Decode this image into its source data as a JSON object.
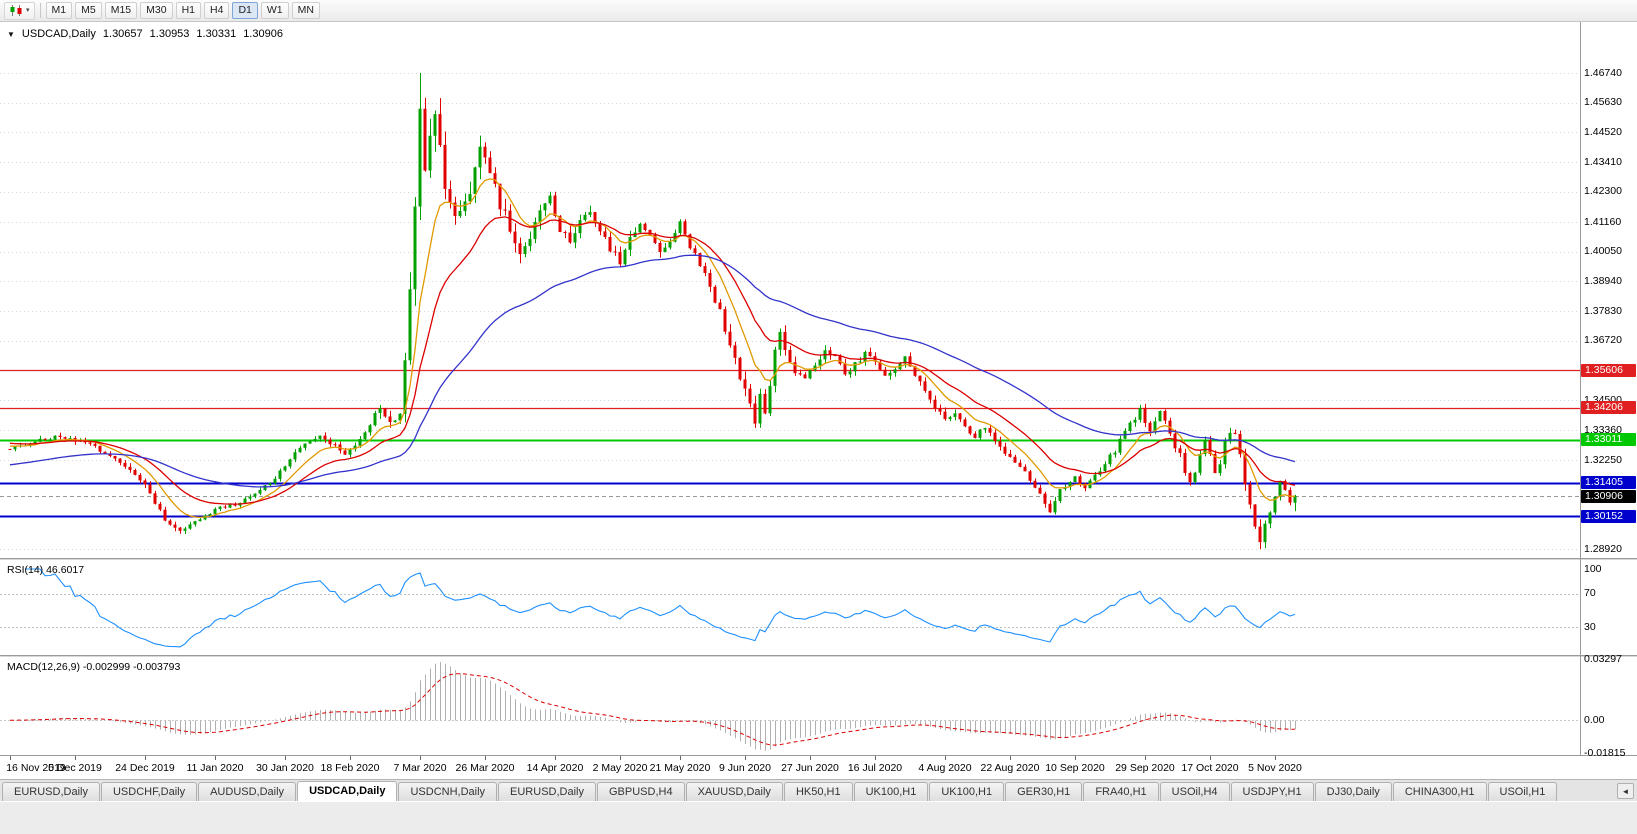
{
  "toolbar": {
    "chart_type_icon": "candlestick-chart-icon",
    "dropdown_caret": "▾",
    "timeframes": [
      "M1",
      "M5",
      "M15",
      "M30",
      "H1",
      "H4",
      "D1",
      "W1",
      "MN"
    ],
    "active_timeframe": "D1"
  },
  "chart": {
    "collapse_arrow": "▼",
    "symbol_period": "USDCAD,Daily",
    "ohlc": {
      "open": "1.30657",
      "high": "1.30953",
      "low": "1.30331",
      "close": "1.30906"
    }
  },
  "indicators": {
    "rsi_label": "RSI(14) 46.6017",
    "macd_label": "MACD(12,26,9) -0.002999 -0.003793"
  },
  "colors": {
    "candle_up": "#00A000",
    "candle_down": "#E00000",
    "hline_red": "#E02020",
    "hline_green": "#00C800",
    "hline_blue": "#0000CC",
    "current_price_badge": "#000000",
    "rsi_line": "#1E90FF",
    "macd_hist": "#B0B0B0",
    "macd_sign": "#DD0000",
    "grid": "#D4D4D4"
  },
  "tabs": {
    "active_index": 3,
    "scroll_left_arrow": "◄",
    "items": [
      "EURUSD,Daily",
      "USDCHF,Daily",
      "AUDUSD,Daily",
      "USDCAD,Daily",
      "USDCNH,Daily",
      "EURUSD,Daily",
      "GBPUSD,H4",
      "XAUUSD,Daily",
      "HK50,H1",
      "UK100,H1",
      "UK100,H1",
      "GER30,H1",
      "FRA40,H1",
      "USOil,H4",
      "USDJPY,H1",
      "DJ30,Daily",
      "CHINA300,H1",
      "USOil,H1"
    ]
  },
  "chart_data": {
    "type": "candlestick",
    "symbol": "USDCAD",
    "timeframe": "Daily",
    "n_candles": 258,
    "y_axis": {
      "min": 1.28583,
      "max": 1.4865
    },
    "y_axis_labels": [
      {
        "text": "1.46740",
        "price": 1.4674,
        "type": "grid"
      },
      {
        "text": "1.45630",
        "price": 1.4563,
        "type": "grid"
      },
      {
        "text": "1.44520",
        "price": 1.4452,
        "type": "grid"
      },
      {
        "text": "1.43410",
        "price": 1.4341,
        "type": "grid"
      },
      {
        "text": "1.42300",
        "price": 1.423,
        "type": "grid"
      },
      {
        "text": "1.41160",
        "price": 1.4116,
        "type": "grid"
      },
      {
        "text": "1.40050",
        "price": 1.4005,
        "type": "grid"
      },
      {
        "text": "1.38940",
        "price": 1.3894,
        "type": "grid"
      },
      {
        "text": "1.37830",
        "price": 1.3783,
        "type": "grid"
      },
      {
        "text": "1.36720",
        "price": 1.3672,
        "type": "grid"
      },
      {
        "text": "1.35606",
        "price": 1.35606,
        "type": "red"
      },
      {
        "text": "1.34500",
        "price": 1.345,
        "type": "grid"
      },
      {
        "text": "1.34206",
        "price": 1.34206,
        "type": "red"
      },
      {
        "text": "1.33360",
        "price": 1.3336,
        "type": "grid"
      },
      {
        "text": "1.33011",
        "price": 1.33011,
        "type": "green"
      },
      {
        "text": "1.32250",
        "price": 1.3225,
        "type": "grid"
      },
      {
        "text": "1.31405",
        "price": 1.31405,
        "type": "blue"
      },
      {
        "text": "1.30906",
        "price": 1.30906,
        "type": "current"
      },
      {
        "text": "1.30152",
        "price": 1.30152,
        "type": "blue"
      },
      {
        "text": "1.28920",
        "price": 1.2892,
        "type": "grid"
      }
    ],
    "horizontal_lines": [
      {
        "price": 1.35606,
        "color": "#E02020",
        "width": 1.2
      },
      {
        "price": 1.34206,
        "color": "#E02020",
        "width": 1.2
      },
      {
        "price": 1.33011,
        "color": "#00C800",
        "width": 2
      },
      {
        "price": 1.31405,
        "color": "#0000CC",
        "width": 2
      },
      {
        "price": 1.30152,
        "color": "#0000CC",
        "width": 2
      }
    ],
    "current_price": {
      "price": 1.30906,
      "text": "1.30906"
    },
    "pinned_last_candle": {
      "o": 1.30657,
      "h": 1.30953,
      "l": 1.30331,
      "c": 1.30906
    },
    "pinned_high": {
      "index": 82,
      "price": 1.4674
    },
    "pinned_low": {
      "index": 250,
      "price": 1.2892
    },
    "price_anchors": [
      [
        0,
        1.3268
      ],
      [
        4,
        1.3292
      ],
      [
        9,
        1.3308
      ],
      [
        13,
        1.3298
      ],
      [
        17,
        1.3272
      ],
      [
        21,
        1.3228
      ],
      [
        25,
        1.3165
      ],
      [
        28,
        1.3108
      ],
      [
        31,
        1.2992
      ],
      [
        34,
        1.2958
      ],
      [
        37,
        1.2988
      ],
      [
        41,
        1.3042
      ],
      [
        45,
        1.3062
      ],
      [
        49,
        1.3092
      ],
      [
        53,
        1.3158
      ],
      [
        56,
        1.3235
      ],
      [
        59,
        1.3292
      ],
      [
        62,
        1.3312
      ],
      [
        65,
        1.3282
      ],
      [
        67,
        1.3242
      ],
      [
        70,
        1.3302
      ],
      [
        73,
        1.3395
      ],
      [
        74,
        1.3435
      ],
      [
        75,
        1.3392
      ],
      [
        77,
        1.3368
      ],
      [
        78,
        1.3415
      ],
      [
        79,
        1.356
      ],
      [
        80,
        1.386
      ],
      [
        81,
        1.418
      ],
      [
        82,
        1.452
      ],
      [
        83,
        1.428
      ],
      [
        84,
        1.442
      ],
      [
        85,
        1.4555
      ],
      [
        86,
        1.443
      ],
      [
        87,
        1.427
      ],
      [
        89,
        1.412
      ],
      [
        91,
        1.418
      ],
      [
        93,
        1.432
      ],
      [
        94,
        1.4385
      ],
      [
        96,
        1.428
      ],
      [
        98,
        1.418
      ],
      [
        100,
        1.4095
      ],
      [
        102,
        1.3985
      ],
      [
        104,
        1.407
      ],
      [
        106,
        1.415
      ],
      [
        108,
        1.4195
      ],
      [
        110,
        1.409
      ],
      [
        112,
        1.4035
      ],
      [
        114,
        1.412
      ],
      [
        116,
        1.4165
      ],
      [
        118,
        1.4075
      ],
      [
        120,
        1.402
      ],
      [
        122,
        1.3955
      ],
      [
        124,
        1.406
      ],
      [
        126,
        1.4115
      ],
      [
        128,
        1.406
      ],
      [
        130,
        1.3995
      ],
      [
        132,
        1.405
      ],
      [
        134,
        1.4105
      ],
      [
        136,
        1.403
      ],
      [
        138,
        1.3955
      ],
      [
        140,
        1.387
      ],
      [
        142,
        1.3775
      ],
      [
        144,
        1.366
      ],
      [
        146,
        1.353
      ],
      [
        148,
        1.342
      ],
      [
        149,
        1.337
      ],
      [
        150,
        1.3455
      ],
      [
        151,
        1.3405
      ],
      [
        152,
        1.352
      ],
      [
        153,
        1.362
      ],
      [
        154,
        1.369
      ],
      [
        155,
        1.365
      ],
      [
        157,
        1.356
      ],
      [
        159,
        1.352
      ],
      [
        161,
        1.358
      ],
      [
        163,
        1.364
      ],
      [
        165,
        1.3605
      ],
      [
        167,
        1.355
      ],
      [
        169,
        1.3585
      ],
      [
        171,
        1.3625
      ],
      [
        173,
        1.3585
      ],
      [
        175,
        1.354
      ],
      [
        177,
        1.3575
      ],
      [
        179,
        1.3605
      ],
      [
        181,
        1.3545
      ],
      [
        183,
        1.348
      ],
      [
        185,
        1.342
      ],
      [
        187,
        1.337
      ],
      [
        189,
        1.34
      ],
      [
        191,
        1.3355
      ],
      [
        193,
        1.331
      ],
      [
        195,
        1.3345
      ],
      [
        197,
        1.33
      ],
      [
        199,
        1.325
      ],
      [
        201,
        1.3215
      ],
      [
        203,
        1.318
      ],
      [
        205,
        1.313
      ],
      [
        207,
        1.3065
      ],
      [
        208,
        1.303
      ],
      [
        209,
        1.308
      ],
      [
        211,
        1.313
      ],
      [
        213,
        1.316
      ],
      [
        215,
        1.3125
      ],
      [
        217,
        1.317
      ],
      [
        219,
        1.3215
      ],
      [
        221,
        1.326
      ],
      [
        223,
        1.3335
      ],
      [
        225,
        1.338
      ],
      [
        226,
        1.342
      ],
      [
        227,
        1.337
      ],
      [
        228,
        1.333
      ],
      [
        229,
        1.338
      ],
      [
        230,
        1.342
      ],
      [
        231,
        1.338
      ],
      [
        232,
        1.332
      ],
      [
        233,
        1.328
      ],
      [
        234,
        1.324
      ],
      [
        235,
        1.318
      ],
      [
        236,
        1.314
      ],
      [
        237,
        1.318
      ],
      [
        238,
        1.324
      ],
      [
        239,
        1.329
      ],
      [
        240,
        1.324
      ],
      [
        241,
        1.318
      ],
      [
        242,
        1.322
      ],
      [
        243,
        1.329
      ],
      [
        244,
        1.333
      ],
      [
        245,
        1.332
      ],
      [
        246,
        1.324
      ],
      [
        247,
        1.314
      ],
      [
        248,
        1.304
      ],
      [
        249,
        1.296
      ],
      [
        250,
        1.2915
      ],
      [
        251,
        1.298
      ],
      [
        252,
        1.304
      ],
      [
        253,
        1.309
      ],
      [
        254,
        1.3145
      ],
      [
        255,
        1.3125
      ],
      [
        256,
        1.3066
      ],
      [
        257,
        1.30906
      ]
    ],
    "volatility_anchors": [
      [
        0,
        0.0016
      ],
      [
        30,
        0.0024
      ],
      [
        40,
        0.0016
      ],
      [
        70,
        0.0022
      ],
      [
        76,
        0.0045
      ],
      [
        80,
        0.011
      ],
      [
        86,
        0.0095
      ],
      [
        95,
        0.007
      ],
      [
        105,
        0.0048
      ],
      [
        120,
        0.004
      ],
      [
        138,
        0.003
      ],
      [
        146,
        0.005
      ],
      [
        152,
        0.0048
      ],
      [
        160,
        0.003
      ],
      [
        185,
        0.0026
      ],
      [
        205,
        0.0028
      ],
      [
        215,
        0.0022
      ],
      [
        228,
        0.0028
      ],
      [
        240,
        0.0025
      ],
      [
        246,
        0.0036
      ],
      [
        250,
        0.0046
      ],
      [
        254,
        0.003
      ],
      [
        257,
        0.0022
      ]
    ],
    "moving_averages": [
      {
        "period": 9,
        "color": "#E09A00",
        "seed": 1.328
      },
      {
        "period": 20,
        "color": "#DD0000",
        "seed": 1.329
      },
      {
        "period": 55,
        "color": "#3333CC",
        "seed": 1.3205
      }
    ],
    "rsi": {
      "period": 14,
      "current": 46.6017,
      "levels": [
        70,
        30
      ],
      "scale_labels": [
        {
          "text": "100",
          "value": 100
        },
        {
          "text": "70",
          "value": 70
        },
        {
          "text": "30",
          "value": 30
        }
      ]
    },
    "macd": {
      "fast": 12,
      "slow": 26,
      "signal_period": 9,
      "current_macd": -0.002999,
      "current_signal": -0.003793,
      "range": [
        -0.019,
        0.034
      ],
      "scale_labels": [
        {
          "text": "0.03297",
          "value": 0.03297
        },
        {
          "text": "0.00",
          "value": 0
        },
        {
          "text": "-0.01815",
          "value": -0.01815
        }
      ]
    },
    "date_ticks": [
      {
        "label": "16 Nov 2019",
        "i": 0
      },
      {
        "label": "5 Dec 2019",
        "i": 13
      },
      {
        "label": "24 Dec 2019",
        "i": 27
      },
      {
        "label": "11 Jan 2020",
        "i": 41
      },
      {
        "label": "30 Jan 2020",
        "i": 55
      },
      {
        "label": "18 Feb 2020",
        "i": 68
      },
      {
        "label": "7 Mar 2020",
        "i": 82
      },
      {
        "label": "26 Mar 2020",
        "i": 95
      },
      {
        "label": "14 Apr 2020",
        "i": 109
      },
      {
        "label": "2 May 2020",
        "i": 122
      },
      {
        "label": "21 May 2020",
        "i": 134
      },
      {
        "label": "9 Jun 2020",
        "i": 147
      },
      {
        "label": "27 Jun 2020",
        "i": 160
      },
      {
        "label": "16 Jul 2020",
        "i": 173
      },
      {
        "label": "4 Aug 2020",
        "i": 187
      },
      {
        "label": "22 Aug 2020",
        "i": 200
      },
      {
        "label": "10 Sep 2020",
        "i": 213
      },
      {
        "label": "29 Sep 2020",
        "i": 227
      },
      {
        "label": "17 Oct 2020",
        "i": 240
      },
      {
        "label": "5 Nov 2020",
        "i": 253
      }
    ]
  }
}
